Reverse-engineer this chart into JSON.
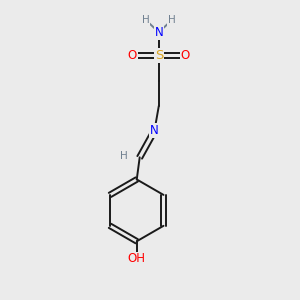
{
  "background_color": "#ebebeb",
  "atom_colors": {
    "C": "#000000",
    "H": "#708090",
    "N": "#0000FF",
    "O": "#FF0000",
    "S": "#DAA520",
    "OH": "#FF0000"
  },
  "bond_color": "#1a1a1a",
  "figsize": [
    3.0,
    3.0
  ],
  "dpi": 100
}
